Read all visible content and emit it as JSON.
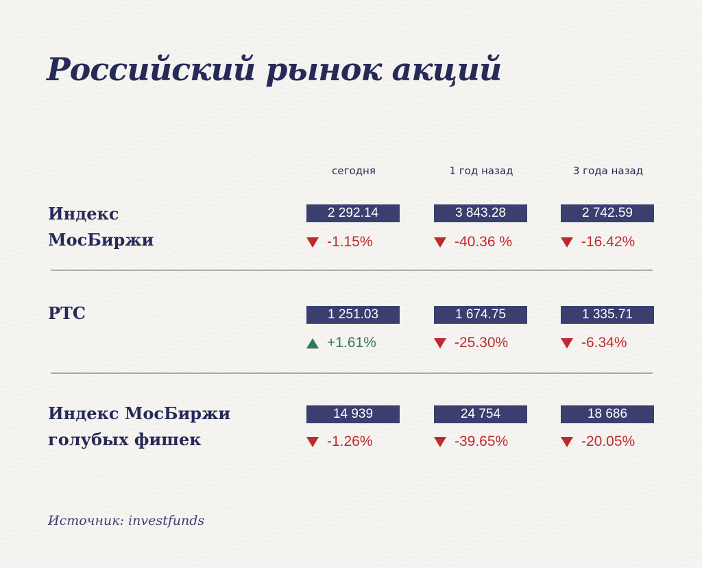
{
  "title": "Российский рынок акций",
  "columns": [
    "сегодня",
    "1 год назад",
    "3 года назад"
  ],
  "rows": [
    {
      "label_lines": [
        "Индекс",
        "МосБиржи"
      ],
      "values": [
        "2 292.14",
        "3 843.28",
        "2 742.59"
      ],
      "changes": [
        {
          "text": "-1.15%",
          "direction": "down"
        },
        {
          "text": "-40.36 %",
          "direction": "down"
        },
        {
          "text": "-16.42%",
          "direction": "down"
        }
      ]
    },
    {
      "label_lines": [
        "РТС"
      ],
      "values": [
        "1 251.03",
        "1 674.75",
        "1 335.71"
      ],
      "changes": [
        {
          "text": "+1.61%",
          "direction": "up"
        },
        {
          "text": "-25.30%",
          "direction": "down"
        },
        {
          "text": "-6.34%",
          "direction": "down"
        }
      ]
    },
    {
      "label_lines": [
        "Индекс МосБиржи",
        "голубых фишек"
      ],
      "values": [
        "14 939",
        "24 754",
        "18 686"
      ],
      "changes": [
        {
          "text": "-1.26%",
          "direction": "down"
        },
        {
          "text": "-39.65%",
          "direction": "down"
        },
        {
          "text": "-20.05%",
          "direction": "down"
        }
      ]
    }
  ],
  "source": "Источник: investfunds",
  "colors": {
    "navy": "#262a58",
    "box": "#3a3f70",
    "down": "#c0282d",
    "up": "#2f7a50"
  }
}
